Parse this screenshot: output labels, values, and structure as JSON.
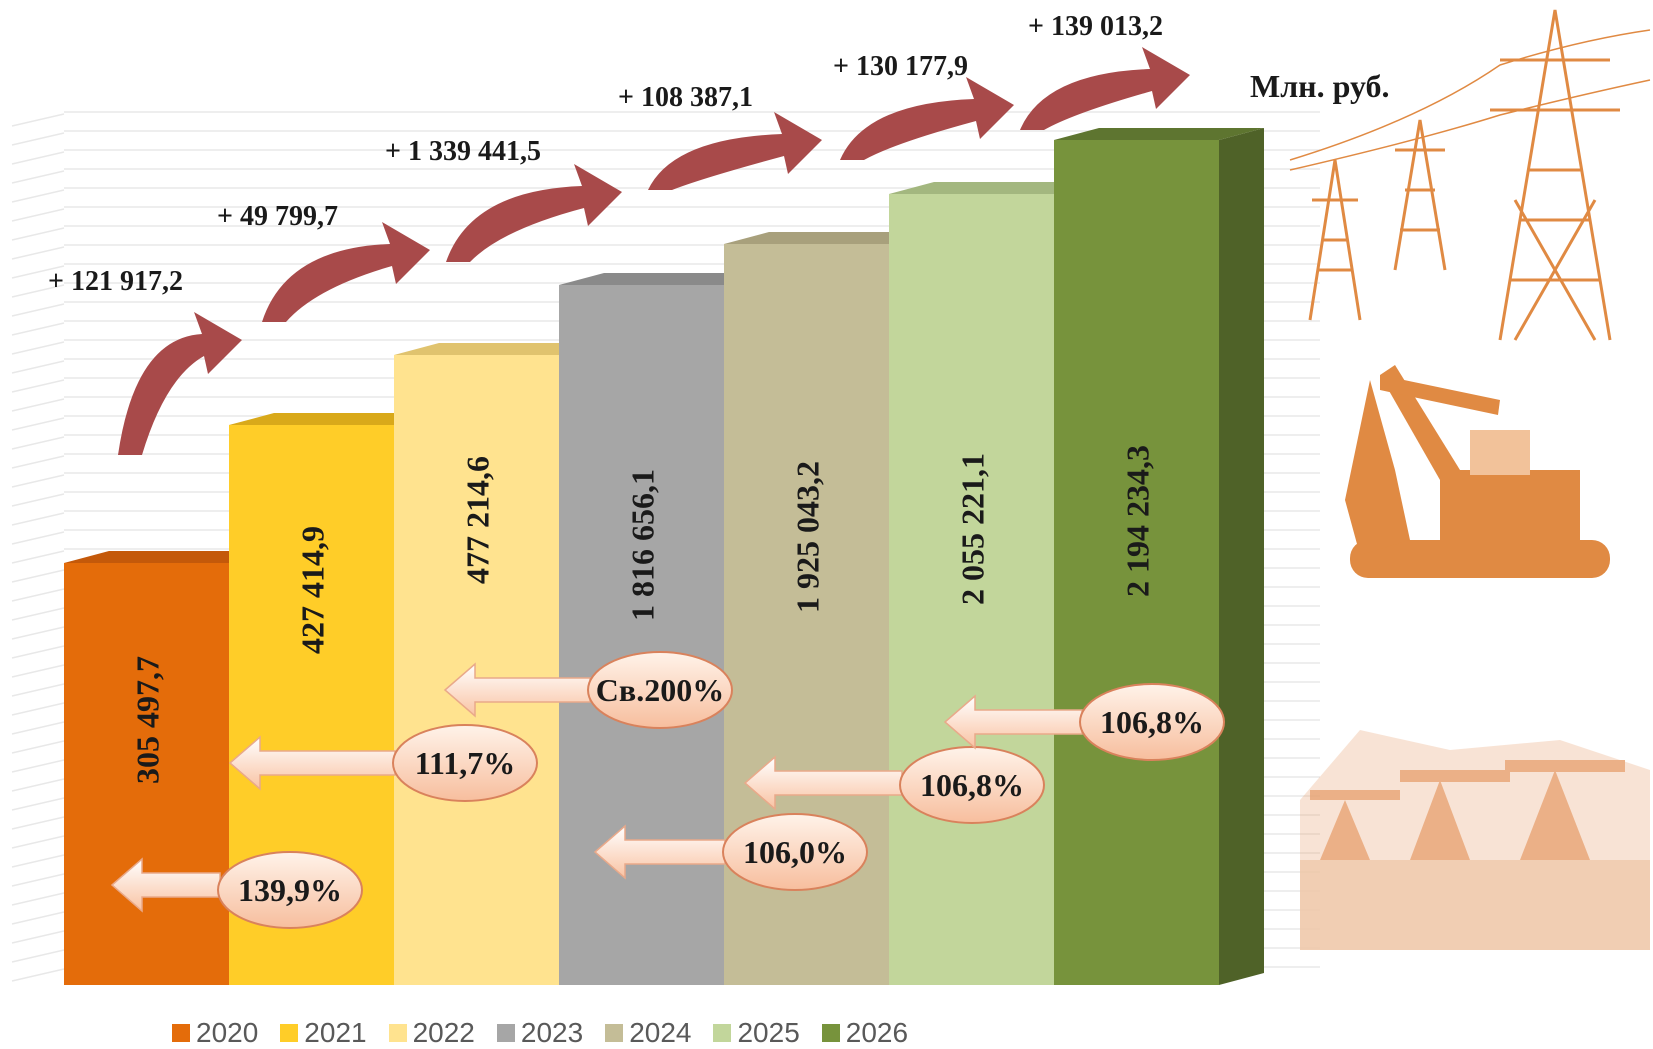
{
  "chart_data": {
    "type": "bar",
    "unit": "Млн. руб.",
    "categories": [
      "2020",
      "2021",
      "2022",
      "2023",
      "2024",
      "2025",
      "2026"
    ],
    "values": [
      305497.7,
      427414.9,
      477214.6,
      1816656.1,
      1925043.2,
      2055221.1,
      2194234.3
    ],
    "value_labels": [
      "305 497,7",
      "427 414,9",
      "477 214,6",
      "1 816 656,1",
      "1 925 043,2",
      "2 055 221,1",
      "2 194 234,3"
    ],
    "increments": [
      "+ 121 917,2",
      "+ 49 799,7",
      "+ 1 339 441,5",
      "+ 108 387,1",
      "+ 130 177,9",
      "+  139 013,2"
    ],
    "growth_rates": [
      "139,9%",
      "111,7%",
      "Св.200%",
      "106,0%",
      "106,8%",
      "106,8%"
    ],
    "colors": [
      "#E46C0A",
      "#FFCD28",
      "#FFE38F",
      "#A6A6A6",
      "#C4BD97",
      "#C2D69B",
      "#77933C"
    ],
    "side_colors": [
      "#B45508",
      "#D9A91A",
      "#D9C070",
      "#808080",
      "#9E9775",
      "#9CB276",
      "#4F6228"
    ],
    "top_colors": [
      "#C4590A",
      "#D9A91A",
      "#E0C36E",
      "#8A8A8A",
      "#A8A07C",
      "#A3B77F",
      "#5E7530"
    ],
    "legend": [
      "2020",
      "2021",
      "2022",
      "2023",
      "2024",
      "2025",
      "2026"
    ],
    "legend_position": "bottom",
    "grid": true,
    "icons": [
      "power-lines-icon",
      "excavator-icon",
      "oil-pump-icon"
    ]
  }
}
